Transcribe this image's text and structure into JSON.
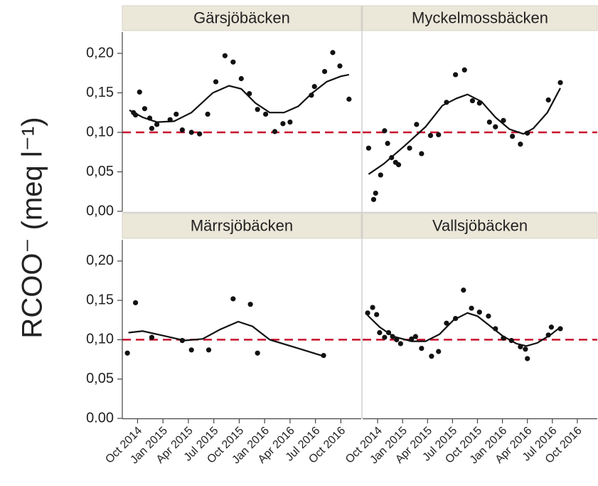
{
  "chart_data": {
    "type": "scatter",
    "ylabel": "RCOO⁻ (meq l⁻¹)",
    "xlim": [
      2014.6,
      2016.95
    ],
    "xticks": [
      {
        "value": 2014.75,
        "label": "Oct 2014"
      },
      {
        "value": 2015.0,
        "label": "Jan 2015"
      },
      {
        "value": 2015.25,
        "label": "Apr 2015"
      },
      {
        "value": 2015.5,
        "label": "Jul 2015"
      },
      {
        "value": 2015.75,
        "label": "Oct 2015"
      },
      {
        "value": 2016.0,
        "label": "Jan 2016"
      },
      {
        "value": 2016.25,
        "label": "Apr 2016"
      },
      {
        "value": 2016.5,
        "label": "Jul 2016"
      },
      {
        "value": 2016.75,
        "label": "Oct 2016"
      }
    ],
    "ylim": [
      0,
      0.227
    ],
    "rows": [
      {
        "yticks": [
          {
            "value": 0,
            "label": "0,00"
          },
          {
            "value": 0.05,
            "label": "0,05"
          },
          {
            "value": 0.1,
            "label": "0,10"
          },
          {
            "value": 0.15,
            "label": "0,15"
          },
          {
            "value": 0.2,
            "label": "0,20"
          }
        ]
      },
      {
        "yticks": [
          {
            "value": 0,
            "label": "0.00"
          },
          {
            "value": 0.05,
            "label": "0,05"
          },
          {
            "value": 0.1,
            "label": "0,10"
          },
          {
            "value": 0.15,
            "label": "0,15"
          },
          {
            "value": 0.2,
            "label": "0,20"
          }
        ]
      }
    ],
    "reference_line": 0.1,
    "reference_color": "#c8102e",
    "point_color": "#111111",
    "fit_color": "#111111",
    "panels": [
      {
        "title": "Gärsjöbäcken",
        "x": [
          2014.71,
          2014.73,
          2014.77,
          2014.82,
          2014.87,
          2014.89,
          2014.94,
          2015.07,
          2015.13,
          2015.19,
          2015.28,
          2015.36,
          2015.44,
          2015.52,
          2015.61,
          2015.69,
          2015.77,
          2015.85,
          2015.93,
          2016.01,
          2016.1,
          2016.18,
          2016.25,
          2016.46,
          2016.49,
          2016.59,
          2016.67,
          2016.74,
          2016.83
        ],
        "values": [
          0.125,
          0.122,
          0.151,
          0.13,
          0.118,
          0.105,
          0.11,
          0.116,
          0.123,
          0.103,
          0.1,
          0.098,
          0.123,
          0.164,
          0.197,
          0.189,
          0.168,
          0.149,
          0.129,
          0.123,
          0.101,
          0.111,
          0.113,
          0.147,
          0.158,
          0.177,
          0.201,
          0.184,
          0.142
        ],
        "fit": {
          "x": [
            2014.67,
            2014.8,
            2014.94,
            2015.11,
            2015.28,
            2015.49,
            2015.65,
            2015.77,
            2015.91,
            2016.05,
            2016.19,
            2016.33,
            2016.47,
            2016.61,
            2016.75,
            2016.83
          ],
          "values": [
            0.128,
            0.119,
            0.113,
            0.114,
            0.125,
            0.15,
            0.159,
            0.155,
            0.137,
            0.125,
            0.125,
            0.133,
            0.15,
            0.164,
            0.171,
            0.173
          ]
        }
      },
      {
        "title": "Myckelmossbäcken",
        "x": [
          2014.66,
          2014.71,
          2014.73,
          2014.78,
          2014.82,
          2014.85,
          2014.89,
          2014.93,
          2014.96,
          2015.07,
          2015.14,
          2015.19,
          2015.28,
          2015.36,
          2015.44,
          2015.53,
          2015.62,
          2015.7,
          2015.77,
          2015.87,
          2015.93,
          2016.01,
          2016.1,
          2016.18,
          2016.25,
          2016.46,
          2016.58
        ],
        "values": [
          0.08,
          0.015,
          0.023,
          0.046,
          0.102,
          0.086,
          0.068,
          0.062,
          0.059,
          0.08,
          0.11,
          0.073,
          0.096,
          0.097,
          0.138,
          0.173,
          0.179,
          0.14,
          0.137,
          0.113,
          0.107,
          0.115,
          0.095,
          0.085,
          0.099,
          0.141,
          0.163
        ],
        "fit": {
          "x": [
            2014.66,
            2014.81,
            2015.02,
            2015.23,
            2015.4,
            2015.54,
            2015.65,
            2015.79,
            2015.93,
            2016.07,
            2016.21,
            2016.31,
            2016.45,
            2016.58
          ],
          "values": [
            0.047,
            0.06,
            0.083,
            0.107,
            0.134,
            0.143,
            0.148,
            0.139,
            0.119,
            0.104,
            0.098,
            0.105,
            0.125,
            0.156
          ]
        }
      },
      {
        "title": "Märrsjöbäcken",
        "x": [
          2014.65,
          2014.73,
          2014.89,
          2015.19,
          2015.28,
          2015.45,
          2015.69,
          2015.86,
          2015.93,
          2016.58
        ],
        "values": [
          0.083,
          0.147,
          0.103,
          0.099,
          0.087,
          0.087,
          0.152,
          0.145,
          0.083,
          0.08
        ],
        "fit": {
          "x": [
            2014.66,
            2014.8,
            2015.01,
            2015.21,
            2015.39,
            2015.56,
            2015.74,
            2015.88,
            2016.05,
            2016.33,
            2016.58
          ],
          "values": [
            0.109,
            0.111,
            0.105,
            0.099,
            0.101,
            0.113,
            0.123,
            0.117,
            0.1,
            0.089,
            0.079
          ]
        }
      },
      {
        "title": "Vallsjöbäcken",
        "x": [
          2014.65,
          2014.7,
          2014.74,
          2014.77,
          2014.82,
          2014.86,
          2014.9,
          2014.94,
          2014.98,
          2015.09,
          2015.13,
          2015.19,
          2015.29,
          2015.36,
          2015.44,
          2015.53,
          2015.61,
          2015.69,
          2015.77,
          2015.86,
          2015.93,
          2016.01,
          2016.09,
          2016.18,
          2016.23,
          2016.25,
          2016.46,
          2016.49,
          2016.58
        ],
        "values": [
          0.134,
          0.141,
          0.132,
          0.109,
          0.103,
          0.109,
          0.104,
          0.1,
          0.095,
          0.101,
          0.104,
          0.089,
          0.079,
          0.085,
          0.121,
          0.127,
          0.163,
          0.14,
          0.135,
          0.13,
          0.114,
          0.102,
          0.099,
          0.091,
          0.088,
          0.076,
          0.106,
          0.116,
          0.114
        ],
        "fit": {
          "x": [
            2014.65,
            2014.77,
            2014.91,
            2015.09,
            2015.23,
            2015.37,
            2015.51,
            2015.65,
            2015.75,
            2015.86,
            2016.0,
            2016.14,
            2016.24,
            2016.35,
            2016.49,
            2016.58
          ],
          "values": [
            0.131,
            0.116,
            0.104,
            0.098,
            0.098,
            0.107,
            0.125,
            0.134,
            0.13,
            0.119,
            0.105,
            0.095,
            0.092,
            0.096,
            0.107,
            0.116
          ]
        }
      }
    ]
  }
}
